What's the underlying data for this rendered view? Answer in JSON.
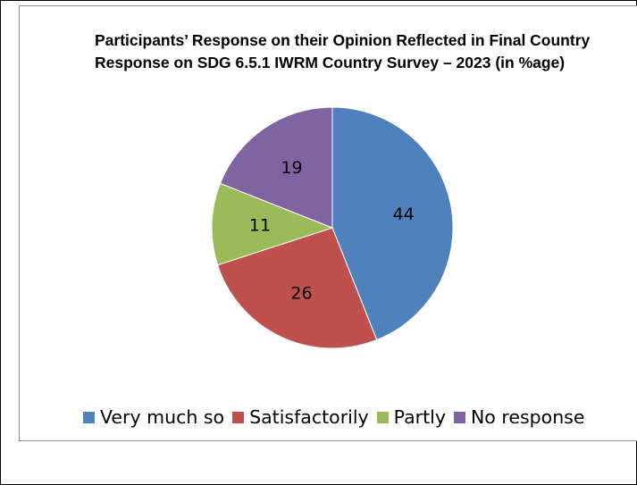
{
  "chart_data": {
    "type": "pie",
    "title": "Participants’ Response on their Opinion Reflected in Final Country Response on SDG 6.5.1 IWRM Country Survey – 2023  (in %age)",
    "categories": [
      "Very much so",
      "Satisfactorily",
      "Partly",
      "No response"
    ],
    "values": [
      44,
      26,
      11,
      19
    ],
    "colors": [
      "#4f81bd",
      "#c0504d",
      "#9bbb59",
      "#8064a2"
    ],
    "legend_position": "bottom"
  }
}
